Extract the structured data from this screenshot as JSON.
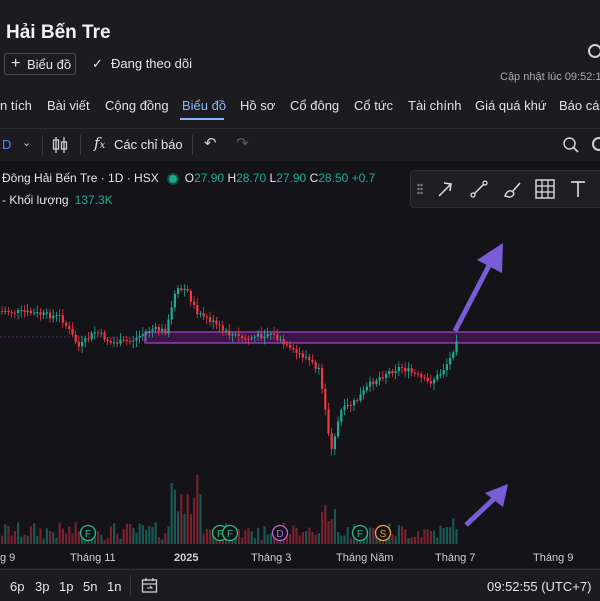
{
  "header": {
    "title": "Hải Bến Tre",
    "chart_button": "Biểu đồ",
    "follow_label": "Đang theo dõi",
    "updated": "Cập nhật lúc  09:52:1"
  },
  "nav": {
    "tabs": [
      "n tích",
      "Bài viết",
      "Cộng đồng",
      "Biểu đồ",
      "Hồ sơ",
      "Cổ đông",
      "Cổ tức",
      "Tài chính",
      "Giá quá khứ",
      "Báo các"
    ],
    "active": "Biểu đồ"
  },
  "toolbar": {
    "interval": "D",
    "indicators_label": "Các chỉ báo"
  },
  "legend": {
    "symbol": "Đông Hải Bến Tre · 1D · HSX",
    "o_label": "O",
    "o": "27.90",
    "h_label": "H",
    "h": "28.70",
    "l_label": "L",
    "l": "27.90",
    "c_label": "C",
    "c": "28.50",
    "change": "+0.7",
    "volume_label": "- Khối lượng",
    "volume": "137.3K"
  },
  "chart_data": {
    "type": "candlestick",
    "x_labels": [
      "g 9",
      "Tháng 11",
      "2025",
      "Tháng 3",
      "Tháng Năm",
      "Tháng 7",
      "Tháng 9"
    ],
    "event_markers": [
      "F",
      "F",
      "F",
      "D",
      "F",
      "S"
    ],
    "colors": {
      "up": "#22ab94",
      "down": "#f23645",
      "zone": "#9c27b0",
      "arrow": "#7b5cd6"
    }
  },
  "bottom": {
    "ranges": [
      "6p",
      "3p",
      "1p",
      "5n",
      "1n"
    ],
    "clock": "09:52:55 (UTC+7)"
  },
  "icons": [
    "plus-icon",
    "check-icon",
    "gear-icon",
    "candle-icon",
    "fx-icon",
    "undo-icon",
    "redo-icon",
    "magnifier-icon",
    "drag-handle-icon",
    "arrow-tool-icon",
    "line-tool-icon",
    "brush-tool-icon",
    "grid-tool-icon",
    "text-tool-icon",
    "calendar-icon"
  ]
}
